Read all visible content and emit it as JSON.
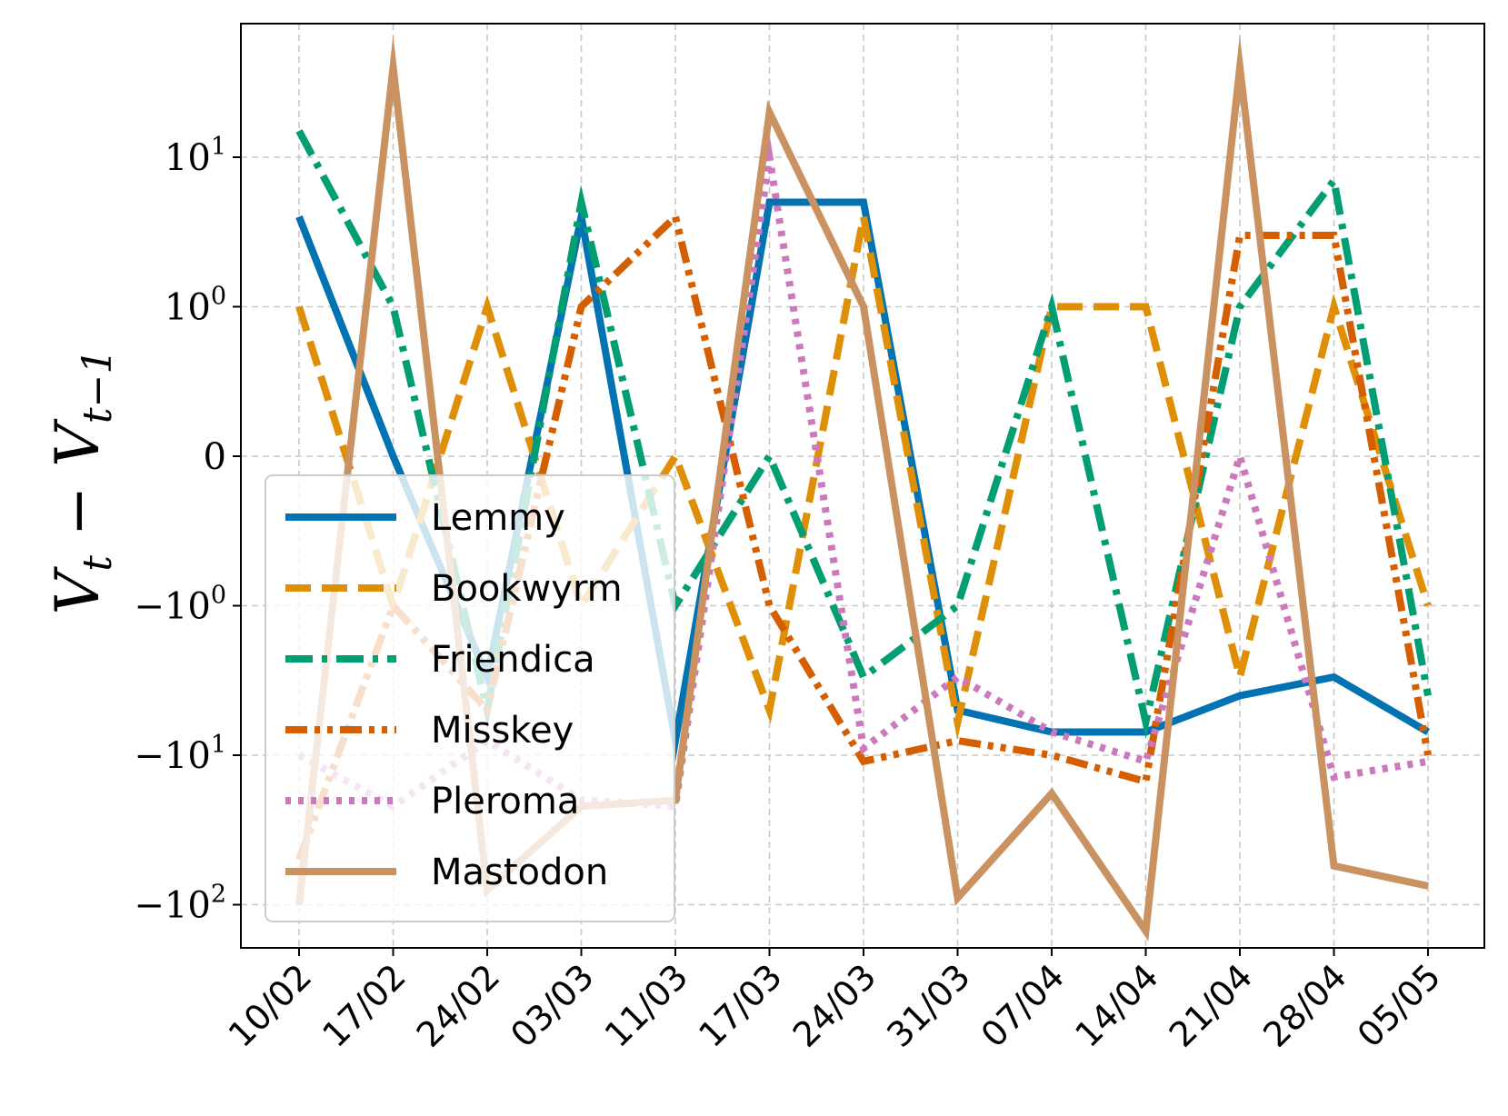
{
  "chart_data": {
    "type": "line",
    "title": "",
    "xlabel": "",
    "ylabel": "V_t − V_{t−1}",
    "yscale": "symlog",
    "ylim": [
      -140,
      45
    ],
    "grid": true,
    "legend_position": "lower-left",
    "categories": [
      "10/02",
      "17/02",
      "24/02",
      "03/03",
      "11/03",
      "17/03",
      "24/03",
      "31/03",
      "07/04",
      "14/04",
      "21/04",
      "28/04",
      "05/05"
    ],
    "y_ticks": [
      {
        "value": -100,
        "label": "−10",
        "exp": "2"
      },
      {
        "value": -10,
        "label": "−10",
        "exp": "1"
      },
      {
        "value": -1,
        "label": "−10",
        "exp": "0"
      },
      {
        "value": 0,
        "label": "0",
        "exp": ""
      },
      {
        "value": 1,
        "label": "10",
        "exp": "0"
      },
      {
        "value": 10,
        "label": "10",
        "exp": "1"
      }
    ],
    "series": [
      {
        "name": "Lemmy",
        "color": "#0173b2",
        "style": "solid",
        "values": [
          4,
          0,
          -3,
          4,
          -8,
          5,
          5,
          -5,
          -7,
          -7,
          -4,
          -3,
          -7
        ]
      },
      {
        "name": "Bookwyrm",
        "color": "#de8f05",
        "style": "dashed",
        "values": [
          1,
          -1,
          1,
          -1,
          0,
          -5,
          4,
          -6,
          1,
          1,
          -3,
          1,
          -1
        ]
      },
      {
        "name": "Friendica",
        "color": "#029e73",
        "style": "dashdot",
        "values": [
          15,
          1,
          -5,
          5,
          -1,
          0,
          -3,
          -1,
          1,
          -6,
          1,
          7,
          -4
        ]
      },
      {
        "name": "Misskey",
        "color": "#d55e00",
        "style": "dashdotdot",
        "values": [
          -50,
          -1,
          -5,
          1,
          4,
          -1,
          -11,
          -8,
          -10,
          -15,
          3,
          3,
          -10
        ]
      },
      {
        "name": "Pleroma",
        "color": "#cc78bc",
        "style": "dotted",
        "values": [
          -10,
          -22,
          -8,
          -20,
          -22,
          10,
          -9,
          -3,
          -7,
          -11,
          0,
          -14,
          -11
        ]
      },
      {
        "name": "Mastodon",
        "color": "#ca9161",
        "style": "solid",
        "values": [
          -100,
          40,
          -80,
          -22,
          -20,
          20,
          1,
          -90,
          -18,
          -150,
          40,
          -55,
          -75
        ]
      }
    ]
  }
}
